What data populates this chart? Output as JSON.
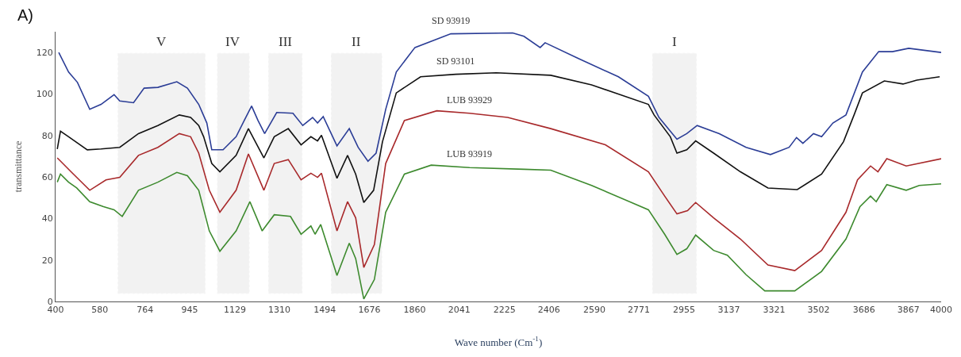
{
  "chart_data": {
    "type": "line",
    "xlabel": "Wave number (Cm$^{-1}$)",
    "ylabel": "transmittance",
    "annotations": [
      "A)"
    ],
    "xlim": [
      400,
      4000
    ],
    "xticks": [
      400,
      580,
      764,
      945,
      1129,
      1310,
      1494,
      1676,
      1860,
      2041,
      2225,
      2406,
      2590,
      2771,
      2955,
      3137,
      3321,
      3502,
      3686,
      3867,
      4000
    ],
    "ylim": [
      0,
      130
    ],
    "yticks": [
      0,
      20,
      40,
      60,
      80,
      100,
      120
    ],
    "grid": false,
    "legend": false,
    "marker": "none",
    "line_style": "solid",
    "bands": [
      {
        "axis": "x",
        "from": 654,
        "to": 1008,
        "label": "V",
        "color": "#b0b0b0"
      },
      {
        "axis": "x",
        "from": 1058,
        "to": 1187,
        "label": "IV",
        "color": "#b0b0b0"
      },
      {
        "axis": "x",
        "from": 1266,
        "to": 1402,
        "label": "III",
        "color": "#b0b0b0"
      },
      {
        "axis": "x",
        "from": 1521,
        "to": 1726,
        "label": "II",
        "color": "#b0b0b0"
      },
      {
        "axis": "x",
        "from": 2827,
        "to": 3005,
        "label": "I",
        "color": "#b0b0b0"
      }
    ],
    "series": [
      {
        "name": "SD 93919",
        "color": "#2b3d96",
        "x": [
          413,
          453,
          489,
          539,
          585,
          638,
          661,
          717,
          760,
          816,
          893,
          936,
          982,
          1015,
          1035,
          1081,
          1134,
          1167,
          1197,
          1223,
          1250,
          1299,
          1365,
          1405,
          1445,
          1465,
          1488,
          1544,
          1594,
          1630,
          1670,
          1703,
          1742,
          1785,
          1861,
          2007,
          2258,
          2304,
          2370,
          2390,
          2522,
          2688,
          2810,
          2853,
          2926,
          2966,
          3008,
          3098,
          3207,
          3306,
          3382,
          3412,
          3438,
          3481,
          3514,
          3560,
          3613,
          3680,
          3746,
          3802,
          3868,
          4000
        ],
        "values": [
          120,
          110.6,
          105.6,
          92.6,
          95,
          99.7,
          96.6,
          95.8,
          102.8,
          103.2,
          105.9,
          102.8,
          95,
          86,
          73.1,
          73.1,
          79.4,
          87.2,
          94.2,
          87.2,
          80.9,
          91.1,
          90.7,
          84.8,
          88.7,
          86,
          89.1,
          75,
          83.3,
          74.3,
          67.6,
          71.5,
          92.6,
          110.6,
          122.4,
          129,
          129.4,
          127.8,
          122.4,
          124.7,
          117.3,
          108.3,
          98.9,
          88.7,
          78.2,
          80.9,
          84.8,
          80.9,
          74.3,
          70.8,
          74.3,
          79,
          76.2,
          80.9,
          79.4,
          86,
          89.9,
          110.6,
          120.4,
          120.4,
          122,
          120
        ]
      },
      {
        "name": "SD 93101",
        "color": "#111111",
        "x": [
          407,
          420,
          453,
          529,
          585,
          661,
          737,
          816,
          903,
          949,
          982,
          1002,
          1035,
          1068,
          1134,
          1184,
          1247,
          1289,
          1346,
          1398,
          1438,
          1465,
          1481,
          1544,
          1587,
          1620,
          1653,
          1693,
          1729,
          1785,
          1884,
          2027,
          2192,
          2413,
          2579,
          2810,
          2833,
          2899,
          2926,
          2966,
          3002,
          3075,
          3184,
          3296,
          3415,
          3514,
          3603,
          3646,
          3680,
          3769,
          3845,
          3901,
          3994
        ],
        "values": [
          73.5,
          82.1,
          79.4,
          73.1,
          73.5,
          74.3,
          80.9,
          84.8,
          89.9,
          88.7,
          84.8,
          79.4,
          66.5,
          62.5,
          70.4,
          83.3,
          69.2,
          79.4,
          83.3,
          75.5,
          79.4,
          77.4,
          80.1,
          59.4,
          70.4,
          61.4,
          47.7,
          53.6,
          77,
          100.5,
          108.3,
          109.5,
          110.2,
          109,
          104.4,
          95,
          89.9,
          79.4,
          71.5,
          73.1,
          77.4,
          71.5,
          62.5,
          54.7,
          53.9,
          61.4,
          77,
          89.9,
          100.5,
          106.3,
          104.8,
          106.7,
          108.3
        ]
      },
      {
        "name": "LUB 93929",
        "color": "#a8292b",
        "x": [
          407,
          463,
          539,
          605,
          661,
          737,
          816,
          903,
          949,
          982,
          1025,
          1068,
          1134,
          1184,
          1247,
          1289,
          1346,
          1398,
          1438,
          1465,
          1481,
          1544,
          1587,
          1620,
          1653,
          1696,
          1742,
          1818,
          1950,
          2083,
          2238,
          2413,
          2635,
          2810,
          2876,
          2926,
          2969,
          3002,
          3075,
          3184,
          3296,
          3405,
          3514,
          3613,
          3660,
          3713,
          3743,
          3779,
          3858,
          4000
        ],
        "values": [
          69.2,
          62.5,
          53.6,
          58.6,
          59.8,
          70.4,
          74.3,
          80.9,
          79.4,
          71.5,
          53.6,
          43,
          53.6,
          71.1,
          53.6,
          66.5,
          68.4,
          58.6,
          61.8,
          59.8,
          61.8,
          34,
          48.1,
          40.3,
          16.4,
          27.4,
          66.5,
          87.2,
          91.9,
          90.7,
          88.7,
          83.3,
          75.5,
          62.5,
          50.8,
          42.2,
          43.8,
          47.7,
          40.3,
          30.1,
          17.6,
          14.9,
          24.6,
          43,
          58.6,
          65.3,
          62.5,
          68.8,
          65.3,
          68.8
        ]
      },
      {
        "name": "LUB 93919",
        "color": "#3d8a2e",
        "x": [
          407,
          420,
          453,
          486,
          539,
          595,
          638,
          671,
          737,
          816,
          893,
          936,
          982,
          1025,
          1068,
          1134,
          1190,
          1240,
          1289,
          1355,
          1398,
          1438,
          1455,
          1478,
          1544,
          1594,
          1620,
          1653,
          1696,
          1742,
          1818,
          1927,
          2083,
          2304,
          2413,
          2579,
          2810,
          2876,
          2926,
          2966,
          3002,
          3075,
          3131,
          3207,
          3283,
          3405,
          3514,
          3613,
          3670,
          3713,
          3736,
          3779,
          3858,
          3911,
          4000
        ],
        "values": [
          57.5,
          61.4,
          57.5,
          54.7,
          48.1,
          45.7,
          44.2,
          41,
          53.6,
          57.5,
          62.2,
          60.6,
          53.6,
          34,
          24.2,
          34,
          48.1,
          34,
          41.8,
          41,
          32.4,
          36.4,
          32.4,
          37.1,
          12.5,
          28.1,
          20.7,
          1.2,
          10.6,
          43,
          61.4,
          65.7,
          64.5,
          63.7,
          63.3,
          55.9,
          44.2,
          32.4,
          22.7,
          25.4,
          32,
          24.6,
          22.3,
          12.9,
          5.1,
          5.1,
          14.5,
          30.1,
          45.7,
          50.8,
          48.1,
          56.3,
          53.6,
          55.9,
          56.7
        ]
      }
    ]
  }
}
